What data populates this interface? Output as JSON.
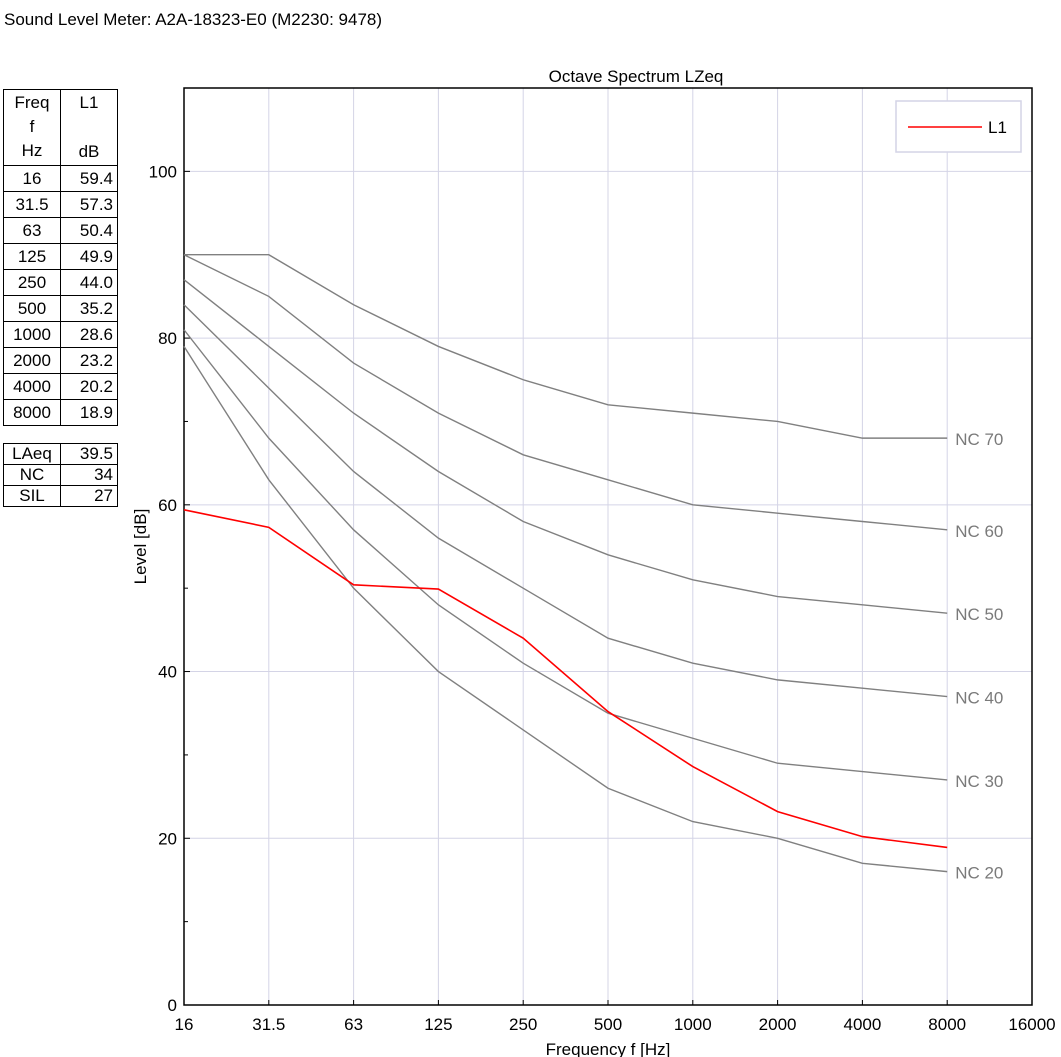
{
  "header": {
    "title": "Sound Level Meter: A2A-18323-E0 (M2230: 9478)"
  },
  "table": {
    "head": {
      "freq_lines": [
        "Freq",
        "f",
        "Hz"
      ],
      "l1_lines": [
        "L1",
        "",
        "dB"
      ]
    },
    "rows": [
      {
        "f": "16",
        "v": "59.4"
      },
      {
        "f": "31.5",
        "v": "57.3"
      },
      {
        "f": "63",
        "v": "50.4"
      },
      {
        "f": "125",
        "v": "49.9"
      },
      {
        "f": "250",
        "v": "44.0"
      },
      {
        "f": "500",
        "v": "35.2"
      },
      {
        "f": "1000",
        "v": "28.6"
      },
      {
        "f": "2000",
        "v": "23.2"
      },
      {
        "f": "4000",
        "v": "20.2"
      },
      {
        "f": "8000",
        "v": "18.9"
      }
    ],
    "summary": [
      {
        "label": "LAeq",
        "value": "39.5"
      },
      {
        "label": "NC",
        "value": "34"
      },
      {
        "label": "SIL",
        "value": "27"
      }
    ]
  },
  "chart_data": {
    "type": "line",
    "title": "Octave Spectrum LZeq",
    "xlabel": "Frequency f [Hz]",
    "ylabel": "Level [dB]",
    "x_scale": "log2",
    "categories": [
      "16",
      "31.5",
      "63",
      "125",
      "250",
      "500",
      "1000",
      "2000",
      "4000",
      "8000",
      "16000"
    ],
    "ylim": [
      0,
      110
    ],
    "yticks": [
      0,
      20,
      40,
      60,
      80,
      100
    ],
    "grid": true,
    "legend_position": "top-right",
    "series": [
      {
        "name": "L1",
        "color": "#ff0000",
        "x": [
          "16",
          "31.5",
          "63",
          "125",
          "250",
          "500",
          "1000",
          "2000",
          "4000",
          "8000"
        ],
        "values": [
          59.4,
          57.3,
          50.4,
          49.9,
          44.0,
          35.2,
          28.6,
          23.2,
          20.2,
          18.9
        ]
      }
    ],
    "reference_curves": [
      {
        "label": "NC 70",
        "color": "#808080",
        "x": [
          "16",
          "31.5",
          "63",
          "125",
          "250",
          "500",
          "1000",
          "2000",
          "4000",
          "8000"
        ],
        "values": [
          90,
          90,
          84,
          79,
          75,
          72,
          71,
          70,
          68,
          68
        ]
      },
      {
        "label": "NC 60",
        "color": "#808080",
        "x": [
          "16",
          "31.5",
          "63",
          "125",
          "250",
          "500",
          "1000",
          "2000",
          "4000",
          "8000"
        ],
        "values": [
          90,
          85,
          77,
          71,
          66,
          63,
          60,
          59,
          58,
          57
        ]
      },
      {
        "label": "NC 50",
        "color": "#808080",
        "x": [
          "16",
          "31.5",
          "63",
          "125",
          "250",
          "500",
          "1000",
          "2000",
          "4000",
          "8000"
        ],
        "values": [
          87,
          79,
          71,
          64,
          58,
          54,
          51,
          49,
          48,
          47
        ]
      },
      {
        "label": "NC 40",
        "color": "#808080",
        "x": [
          "16",
          "31.5",
          "63",
          "125",
          "250",
          "500",
          "1000",
          "2000",
          "4000",
          "8000"
        ],
        "values": [
          84,
          74,
          64,
          56,
          50,
          44,
          41,
          39,
          38,
          37
        ]
      },
      {
        "label": "NC 30",
        "color": "#808080",
        "x": [
          "16",
          "31.5",
          "63",
          "125",
          "250",
          "500",
          "1000",
          "2000",
          "4000",
          "8000"
        ],
        "values": [
          81,
          68,
          57,
          48,
          41,
          35,
          32,
          29,
          28,
          27
        ]
      },
      {
        "label": "NC 20",
        "color": "#808080",
        "x": [
          "16",
          "31.5",
          "63",
          "125",
          "250",
          "500",
          "1000",
          "2000",
          "4000",
          "8000"
        ],
        "values": [
          79,
          63,
          50,
          40,
          33,
          26,
          22,
          20,
          17,
          16
        ]
      }
    ]
  }
}
